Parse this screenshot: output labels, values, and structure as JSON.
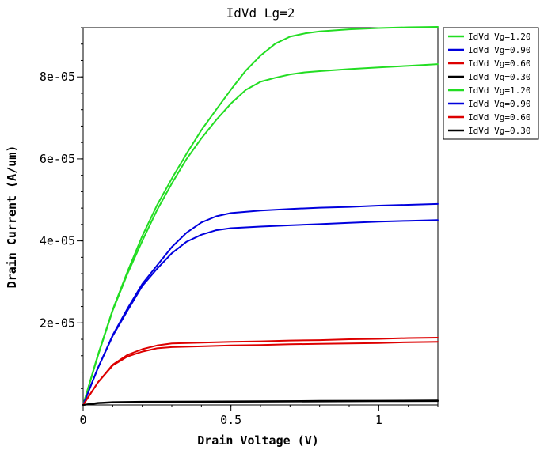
{
  "chart_data": {
    "type": "line",
    "title": "IdVd Lg=2",
    "xlabel": "Drain Voltage (V)",
    "ylabel": "Drain Current (A/um)",
    "xlim": [
      0,
      1.2
    ],
    "ylim": [
      0,
      9.2e-05
    ],
    "x_ticks": [
      {
        "value": 0,
        "label": "0"
      },
      {
        "value": 0.5,
        "label": "0.5"
      },
      {
        "value": 1,
        "label": "1"
      }
    ],
    "y_ticks": [
      {
        "value": 2e-05,
        "label": "2e-05"
      },
      {
        "value": 4e-05,
        "label": "4e-05"
      },
      {
        "value": 6e-05,
        "label": "6e-05"
      },
      {
        "value": 8e-05,
        "label": "8e-05"
      }
    ],
    "grid": false,
    "legend_position": "right, outside plot, top",
    "series": [
      {
        "name": "IdVd Vg=1.20",
        "color": "#22dd22",
        "x": [
          0,
          0.05,
          0.1,
          0.15,
          0.2,
          0.25,
          0.3,
          0.35,
          0.4,
          0.45,
          0.5,
          0.55,
          0.6,
          0.65,
          0.7,
          0.75,
          0.8,
          0.9,
          1.0,
          1.1,
          1.2
        ],
        "y": [
          0,
          1.22e-05,
          2.32e-05,
          3.25e-05,
          4.12e-05,
          4.87e-05,
          5.52e-05,
          6.13e-05,
          6.7e-05,
          7.2e-05,
          7.69e-05,
          8.15e-05,
          8.52e-05,
          8.81e-05,
          8.98e-05,
          9.06e-05,
          9.11e-05,
          9.16e-05,
          9.19e-05,
          9.21e-05,
          9.22e-05
        ]
      },
      {
        "name": "IdVd Vg=0.90",
        "color": "#0000dd",
        "x": [
          0,
          0.05,
          0.1,
          0.15,
          0.2,
          0.25,
          0.3,
          0.35,
          0.4,
          0.45,
          0.5,
          0.6,
          0.7,
          0.8,
          0.9,
          1.0,
          1.1,
          1.2
        ],
        "y": [
          0,
          9e-06,
          1.7e-05,
          2.35e-05,
          2.95e-05,
          3.4e-05,
          3.85e-05,
          4.2e-05,
          4.45e-05,
          4.6e-05,
          4.68e-05,
          4.74e-05,
          4.78e-05,
          4.81e-05,
          4.83e-05,
          4.86e-05,
          4.88e-05,
          4.9e-05
        ]
      },
      {
        "name": "IdVd Vg=0.60",
        "color": "#dd0000",
        "x": [
          0,
          0.05,
          0.1,
          0.15,
          0.2,
          0.25,
          0.3,
          0.4,
          0.5,
          0.6,
          0.7,
          0.8,
          0.9,
          1.0,
          1.1,
          1.2
        ],
        "y": [
          0,
          5.5e-06,
          9.8e-06,
          1.22e-05,
          1.36e-05,
          1.45e-05,
          1.5e-05,
          1.52e-05,
          1.54e-05,
          1.55e-05,
          1.57e-05,
          1.58e-05,
          1.6e-05,
          1.61e-05,
          1.63e-05,
          1.64e-05
        ]
      },
      {
        "name": "IdVd Vg=0.30",
        "color": "#000000",
        "x": [
          0,
          0.05,
          0.1,
          0.2,
          0.4,
          0.6,
          0.8,
          1.0,
          1.2
        ],
        "y": [
          0,
          5e-07,
          7e-07,
          8e-07,
          8.5e-07,
          9e-07,
          1e-06,
          1.05e-06,
          1.1e-06
        ]
      },
      {
        "name": "IdVd Vg=1.20",
        "color": "#22dd22",
        "x": [
          0,
          0.05,
          0.1,
          0.15,
          0.2,
          0.25,
          0.3,
          0.35,
          0.4,
          0.45,
          0.5,
          0.55,
          0.6,
          0.65,
          0.7,
          0.75,
          0.8,
          0.9,
          1.0,
          1.1,
          1.2
        ],
        "y": [
          0,
          1.2e-05,
          2.3e-05,
          3.2e-05,
          4e-05,
          4.75e-05,
          5.4e-05,
          6e-05,
          6.5e-05,
          6.95e-05,
          7.35e-05,
          7.68e-05,
          7.88e-05,
          7.98e-05,
          8.06e-05,
          8.11e-05,
          8.14e-05,
          8.19e-05,
          8.23e-05,
          8.27e-05,
          8.31e-05
        ]
      },
      {
        "name": "IdVd Vg=0.90",
        "color": "#0000dd",
        "x": [
          0,
          0.05,
          0.1,
          0.15,
          0.2,
          0.25,
          0.3,
          0.35,
          0.4,
          0.45,
          0.5,
          0.6,
          0.7,
          0.8,
          0.9,
          1.0,
          1.1,
          1.2
        ],
        "y": [
          0,
          9e-06,
          1.68e-05,
          2.3e-05,
          2.9e-05,
          3.32e-05,
          3.7e-05,
          3.98e-05,
          4.15e-05,
          4.26e-05,
          4.31e-05,
          4.35e-05,
          4.38e-05,
          4.41e-05,
          4.44e-05,
          4.47e-05,
          4.49e-05,
          4.51e-05
        ]
      },
      {
        "name": "IdVd Vg=0.60",
        "color": "#dd0000",
        "x": [
          0,
          0.05,
          0.1,
          0.15,
          0.2,
          0.25,
          0.3,
          0.4,
          0.5,
          0.6,
          0.7,
          0.8,
          0.9,
          1.0,
          1.1,
          1.2
        ],
        "y": [
          0,
          5.5e-06,
          9.6e-06,
          1.18e-05,
          1.3e-05,
          1.38e-05,
          1.41e-05,
          1.43e-05,
          1.45e-05,
          1.46e-05,
          1.48e-05,
          1.49e-05,
          1.5e-05,
          1.51e-05,
          1.53e-05,
          1.54e-05
        ]
      },
      {
        "name": "IdVd Vg=0.30",
        "color": "#000000",
        "x": [
          0,
          0.05,
          0.1,
          0.2,
          0.4,
          0.6,
          0.8,
          1.0,
          1.2
        ],
        "y": [
          0,
          4e-07,
          6e-07,
          7e-07,
          7.5e-07,
          8e-07,
          8.5e-07,
          9e-07,
          9.5e-07
        ]
      }
    ]
  }
}
